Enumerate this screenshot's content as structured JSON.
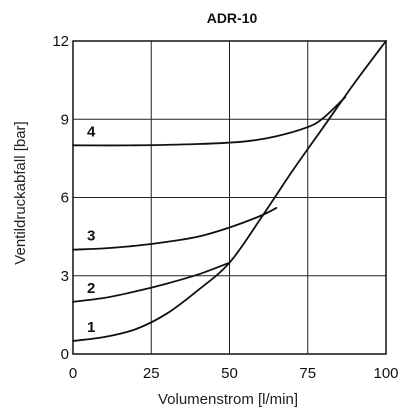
{
  "chart_data": {
    "type": "line",
    "title": "ADR-10",
    "xlabel": "Volumenstrom [l/min]",
    "ylabel": "Ventildruckabfall [bar]",
    "xlim": [
      0,
      100
    ],
    "ylim": [
      0,
      12
    ],
    "xticks": [
      0,
      25,
      50,
      75,
      100
    ],
    "yticks": [
      0,
      3,
      6,
      9,
      12
    ],
    "grid": true,
    "series": [
      {
        "name": "1",
        "x": [
          0,
          10,
          20,
          30,
          40,
          50,
          60,
          70,
          80,
          90,
          100
        ],
        "y": [
          0.5,
          0.65,
          0.95,
          1.55,
          2.45,
          3.5,
          5.2,
          7.0,
          8.7,
          10.4,
          12.0
        ]
      },
      {
        "name": "2",
        "x": [
          0,
          10,
          20,
          30,
          40,
          50
        ],
        "y": [
          2.0,
          2.15,
          2.4,
          2.7,
          3.05,
          3.5
        ]
      },
      {
        "name": "3",
        "x": [
          0,
          10,
          20,
          30,
          40,
          50,
          60,
          65
        ],
        "y": [
          4.0,
          4.05,
          4.15,
          4.3,
          4.5,
          4.85,
          5.3,
          5.6
        ]
      },
      {
        "name": "4",
        "x": [
          0,
          20,
          40,
          55,
          65,
          75,
          80,
          87
        ],
        "y": [
          8.0,
          8.0,
          8.05,
          8.15,
          8.35,
          8.7,
          9.05,
          9.85
        ]
      }
    ]
  }
}
